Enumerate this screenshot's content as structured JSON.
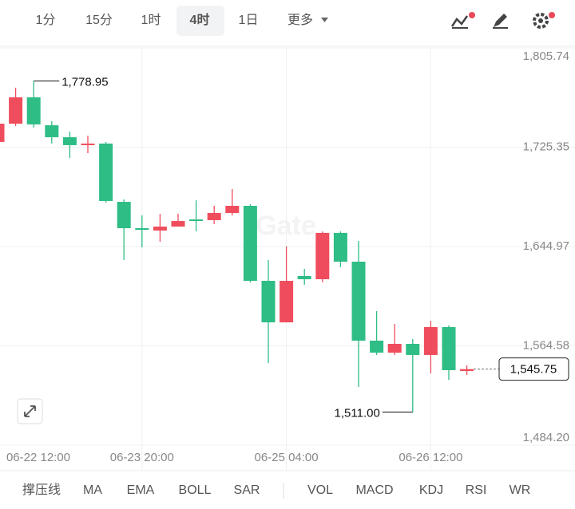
{
  "toolbar": {
    "tabs": [
      "1分",
      "15分",
      "1时",
      "4时",
      "1日",
      "更多"
    ],
    "selected": "4时"
  },
  "indicators": [
    "撑压线",
    "MA",
    "EMA",
    "BOLL",
    "SAR",
    "VOL",
    "MACD",
    "KDJ",
    "RSI",
    "WR"
  ],
  "chart_data": {
    "type": "candlestick",
    "watermark": "Gate",
    "categories": [
      "06-22 12:00",
      null,
      null,
      null,
      null,
      null,
      null,
      null,
      "06-23 20:00",
      null,
      null,
      null,
      null,
      null,
      null,
      null,
      "06-25 04:00",
      null,
      null,
      null,
      null,
      null,
      null,
      null,
      "06-26 12:00",
      null,
      null
    ],
    "open": [
      1729.6,
      1744.4,
      1765.7,
      1743.1,
      1733.4,
      1727.0,
      1728.3,
      1681.1,
      1659.8,
      1657.9,
      1661.1,
      1666.9,
      1666.3,
      1672.1,
      1677.9,
      1617.2,
      1583.6,
      1621.1,
      1618.5,
      1656.0,
      1632.7,
      1568.8,
      1559.1,
      1566.2,
      1557.2,
      1579.8,
      1544.2
    ],
    "high": [
      1747.6,
      1773.5,
      1778.95,
      1746.4,
      1738.0,
      1734.7,
      1729.6,
      1683.1,
      1670.2,
      1671.5,
      1671.5,
      1682.4,
      1677.9,
      1691.5,
      1679.2,
      1634.0,
      1645.0,
      1626.9,
      1657.2,
      1657.2,
      1649.5,
      1592.7,
      1582.3,
      1570.1,
      1584.9,
      1581.1,
      1548.8
    ],
    "low": [
      1728.3,
      1742.5,
      1741.2,
      1728.3,
      1716.7,
      1720.5,
      1680.5,
      1634.0,
      1644.3,
      1648.9,
      1663.1,
      1657.2,
      1663.1,
      1670.2,
      1615.9,
      1550.7,
      1583.6,
      1614.0,
      1616.0,
      1628.2,
      1531.3,
      1557.2,
      1557.2,
      1511.0,
      1542.3,
      1537.1,
      1541.0
    ],
    "close": [
      1744.4,
      1765.7,
      1743.8,
      1733.4,
      1727.0,
      1728.3,
      1681.8,
      1659.8,
      1658.5,
      1661.1,
      1665.6,
      1665.6,
      1672.1,
      1677.9,
      1617.2,
      1583.6,
      1617.2,
      1618.5,
      1656.0,
      1632.7,
      1568.8,
      1559.1,
      1566.2,
      1557.2,
      1579.8,
      1544.9,
      1545.75
    ],
    "up_color": "#ef4d5d",
    "down_color": "#2ebd85",
    "ylim": [
      1484.2,
      1805.74
    ],
    "yticks": [
      {
        "value": 1805.74,
        "label": "1,805.74"
      },
      {
        "value": 1725.35,
        "label": "1,725.35"
      },
      {
        "value": 1644.97,
        "label": "1,644.97"
      },
      {
        "value": 1564.58,
        "label": "1,564.58"
      },
      {
        "value": 1484.2,
        "label": "1,484.20"
      }
    ],
    "grid": true,
    "annotations": [
      {
        "value": 1778.95,
        "label": "1,778.95"
      },
      {
        "value": 1511.0,
        "label": "1,511.00"
      }
    ],
    "last_price": {
      "value": 1545.75,
      "label": "1,545.75"
    }
  }
}
